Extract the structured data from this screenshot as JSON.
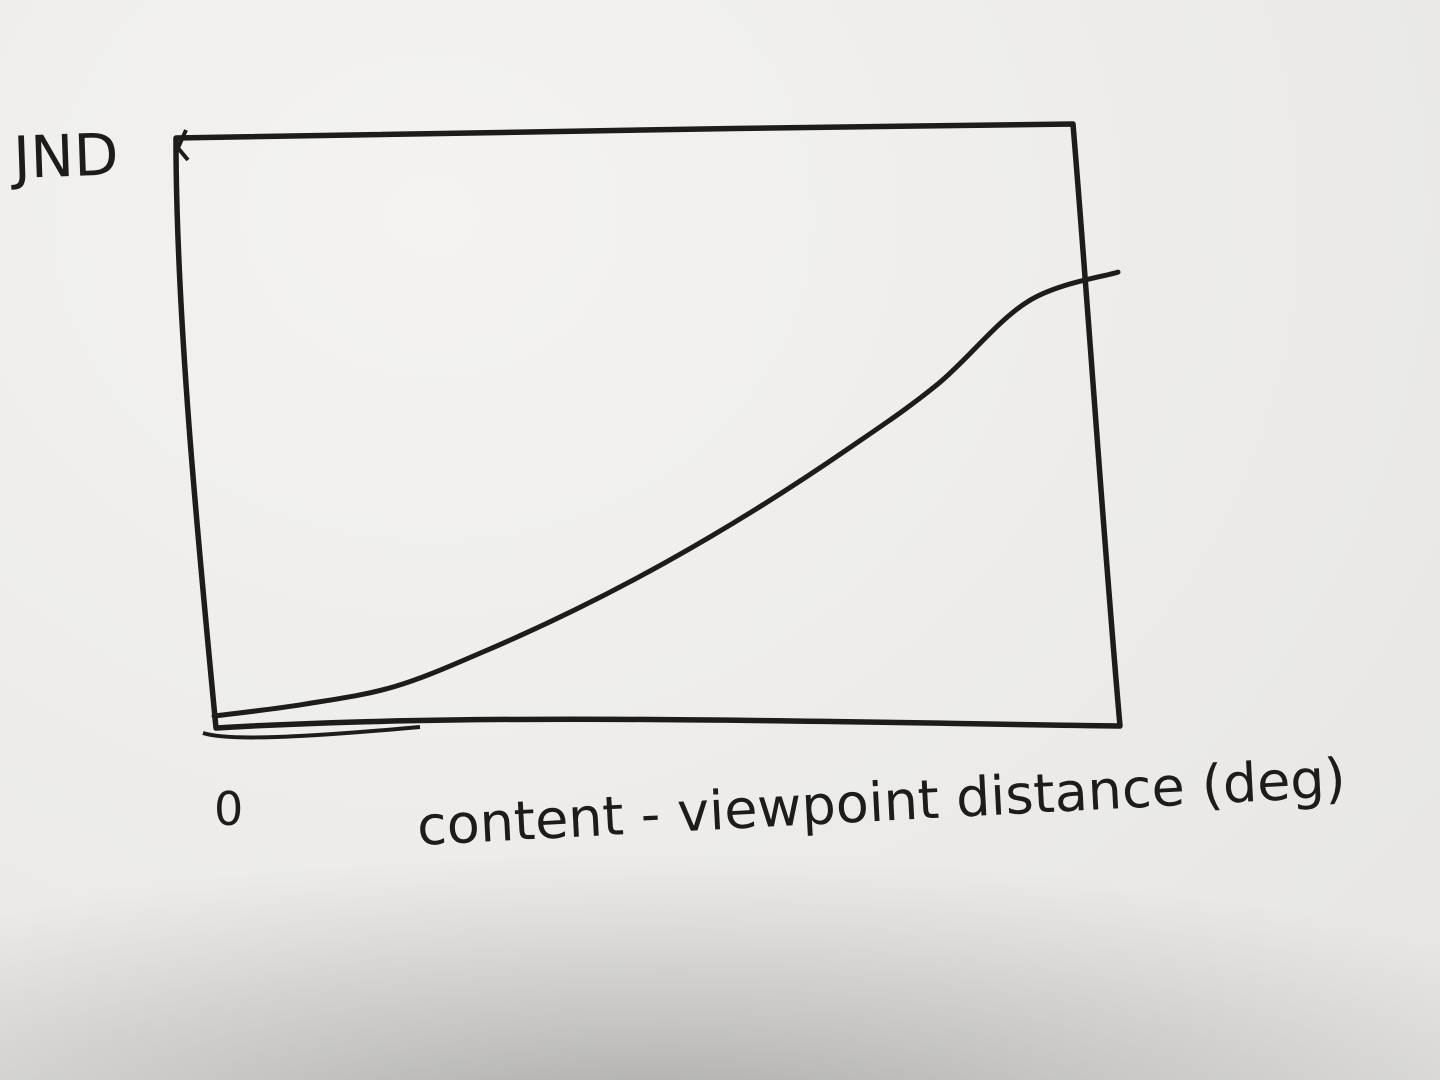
{
  "chart_data": {
    "type": "line",
    "title": "",
    "ylabel": "JND",
    "xlabel": "content - viewpoint distance (deg)",
    "x_tick_labels": [
      "0"
    ],
    "xlim": [
      0,
      10
    ],
    "ylim": [
      0,
      10
    ],
    "grid": false,
    "series": [
      {
        "x": [
          0,
          1,
          2,
          3,
          4,
          5,
          6,
          7,
          8,
          9,
          10
        ],
        "y": [
          0.1,
          0.3,
          0.6,
          1.2,
          1.9,
          2.7,
          3.6,
          4.6,
          5.7,
          7.1,
          7.6
        ]
      }
    ]
  }
}
